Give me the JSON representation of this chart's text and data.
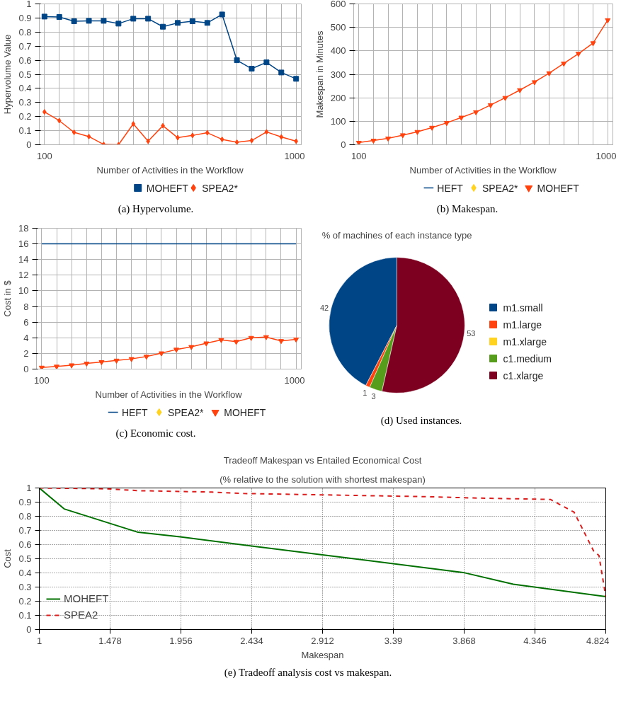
{
  "chart_data": [
    {
      "type": "line",
      "xlabel": "Number of Activities in the Workflow",
      "ylabel": "Hypervolume Value",
      "categories": [
        "100",
        null,
        null,
        null,
        null,
        null,
        null,
        null,
        null,
        null,
        null,
        null,
        null,
        null,
        null,
        null,
        null,
        "1000"
      ],
      "ylim": [
        0,
        1
      ],
      "yticks": [
        0,
        0.1,
        0.2,
        0.3,
        0.4,
        0.5,
        0.6,
        0.7,
        0.8,
        0.9,
        1
      ],
      "grid": true,
      "legend": "bottom",
      "annotations": [
        "(a) Hypervolume."
      ],
      "series": [
        {
          "name": "MOHEFT",
          "color": "#004586",
          "marker": "square",
          "values": [
            0.91,
            0.907,
            0.877,
            0.88,
            0.88,
            0.86,
            0.895,
            0.895,
            0.838,
            0.865,
            0.877,
            0.865,
            0.925,
            0.6,
            0.54,
            0.585,
            0.513,
            0.468
          ]
        },
        {
          "name": "SPEA2*",
          "color": "#ff420e",
          "marker": "diamond",
          "values": [
            0.233,
            0.171,
            0.088,
            0.058,
            0.002,
            0.0,
            0.148,
            0.025,
            0.135,
            0.05,
            0.066,
            0.085,
            0.038,
            0.018,
            0.03,
            0.091,
            0.055,
            0.025
          ]
        }
      ]
    },
    {
      "type": "line",
      "xlabel": "Number of Activities in the Workflow",
      "ylabel": "Makespan in Minutes",
      "categories": [
        "100",
        null,
        null,
        null,
        null,
        null,
        null,
        null,
        null,
        null,
        null,
        null,
        null,
        null,
        null,
        null,
        null,
        "1000"
      ],
      "ylim": [
        0,
        600
      ],
      "yticks": [
        0,
        100,
        200,
        300,
        400,
        500,
        600
      ],
      "grid": true,
      "legend": "bottom",
      "annotations": [
        "(b) Makespan."
      ],
      "series": [
        {
          "name": "HEFT",
          "color": "#004586",
          "marker": "none",
          "values": [
            null,
            null,
            null,
            null,
            null,
            null,
            null,
            null,
            null,
            null,
            null,
            null,
            null,
            null,
            null,
            null,
            null,
            null
          ]
        },
        {
          "name": "SPEA2*",
          "color": "#ffd320",
          "marker": "diamond",
          "values": [
            null,
            null,
            null,
            null,
            null,
            null,
            null,
            null,
            null,
            null,
            null,
            null,
            null,
            null,
            null,
            null,
            null,
            null
          ]
        },
        {
          "name": "MOHEFT",
          "color": "#ff420e",
          "marker": "triangle",
          "values": [
            9,
            18,
            27,
            41,
            55,
            73,
            93,
            116,
            139,
            169,
            200,
            233,
            267,
            305,
            346,
            388,
            433,
            531
          ]
        }
      ]
    },
    {
      "type": "line",
      "xlabel": "Number of Activities in the Workflow",
      "ylabel": "Cost in $",
      "categories": [
        "100",
        null,
        null,
        null,
        null,
        null,
        null,
        null,
        null,
        null,
        null,
        null,
        null,
        null,
        null,
        null,
        null,
        "1000"
      ],
      "ylim": [
        0,
        18
      ],
      "yticks": [
        0,
        2,
        4,
        6,
        8,
        10,
        12,
        14,
        16,
        18
      ],
      "grid": true,
      "legend": "bottom",
      "annotations": [
        "(c) Economic cost."
      ],
      "series": [
        {
          "name": "HEFT",
          "color": "#004586",
          "marker": "none",
          "values": [
            16,
            16,
            16,
            16,
            16,
            16,
            16,
            16,
            16,
            16,
            16,
            16,
            16,
            16,
            16,
            16,
            16,
            16
          ]
        },
        {
          "name": "SPEA2*",
          "color": "#ffd320",
          "marker": "diamond",
          "values": [
            null,
            null,
            null,
            null,
            null,
            null,
            null,
            null,
            null,
            null,
            null,
            null,
            null,
            null,
            null,
            null,
            null,
            null
          ]
        },
        {
          "name": "MOHEFT",
          "color": "#ff420e",
          "marker": "triangle",
          "values": [
            0.2,
            0.33,
            0.5,
            0.72,
            0.9,
            1.1,
            1.3,
            1.6,
            2.03,
            2.5,
            2.84,
            3.3,
            3.73,
            3.5,
            4.0,
            4.1,
            3.6,
            3.8
          ]
        }
      ]
    },
    {
      "type": "pie",
      "title": "% of machines of each instance type",
      "categories": [
        "m1.small",
        "m1.large",
        "m1.xlarge",
        "c1.medium",
        "c1.xlarge"
      ],
      "values": [
        42,
        1,
        0,
        3,
        53
      ],
      "value_labels": [
        "42",
        "1",
        null,
        "3",
        "53"
      ],
      "colors": [
        "#004586",
        "#ff420e",
        "#ffd320",
        "#579d1c",
        "#7e0021"
      ],
      "legend": "right",
      "annotations": [
        "(d) Used instances."
      ]
    },
    {
      "type": "line",
      "title": "Tradeoff Makespan vs Entailed Economical Cost",
      "subtitle": "(% relative to the solution with shortest makespan)",
      "xlabel": "Makespan",
      "ylabel": "Cost",
      "xlim": [
        1,
        4.824
      ],
      "xticks": [
        1,
        1.478,
        1.956,
        2.434,
        2.912,
        3.39,
        3.868,
        4.346,
        4.824
      ],
      "ylim": [
        0,
        1
      ],
      "yticks": [
        0,
        0.1,
        0.2,
        0.3,
        0.4,
        0.5,
        0.6,
        0.7,
        0.8,
        0.9,
        1
      ],
      "grid": true,
      "legend": "bottom left",
      "annotations": [
        "(e) Tradeoff analysis cost vs makespan."
      ],
      "series": [
        {
          "name": "MOHEFT",
          "color": "#007000",
          "line_style": "solid",
          "x": [
            1,
            1.168,
            1.667,
            1.95,
            2.452,
            2.95,
            3.861,
            4.2,
            4.824
          ],
          "values": [
            1,
            0.852,
            0.687,
            0.655,
            0.587,
            0.523,
            0.403,
            0.32,
            0.232
          ]
        },
        {
          "name": "SPEA2",
          "color": "#dd1c1c",
          "line_style": "dashed",
          "x": [
            1,
            1.453,
            1.667,
            2.167,
            2.38,
            2.88,
            3.594,
            3.95,
            4.45,
            4.61,
            4.742,
            4.778,
            4.824
          ],
          "values": [
            1,
            0.994,
            0.981,
            0.971,
            0.961,
            0.952,
            0.939,
            0.929,
            0.919,
            0.829,
            0.555,
            0.523,
            0.232
          ]
        }
      ]
    }
  ]
}
